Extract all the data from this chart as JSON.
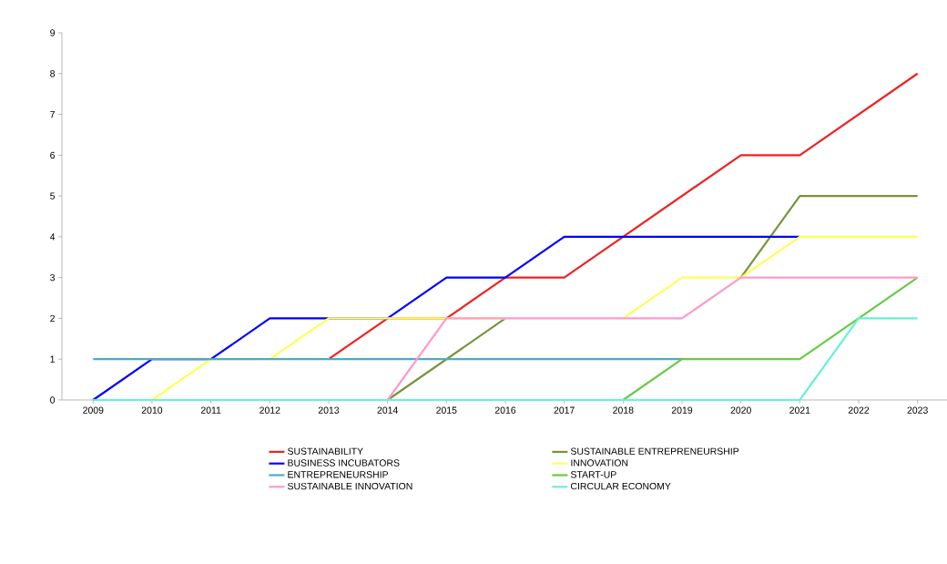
{
  "chart_data": {
    "type": "line",
    "categories": [
      "2009",
      "2010",
      "2011",
      "2012",
      "2013",
      "2014",
      "2015",
      "2016",
      "2017",
      "2018",
      "2019",
      "2020",
      "2021",
      "2022",
      "2023"
    ],
    "ylim": [
      0,
      9
    ],
    "yticks": [
      0,
      1,
      2,
      3,
      4,
      5,
      6,
      7,
      8,
      9
    ],
    "legend": "bottom",
    "grid": false,
    "marker": "none",
    "line_style": "solid",
    "series": [
      {
        "name": "SUSTAINABILITY",
        "color": "#ee2222",
        "values": [
          null,
          null,
          null,
          null,
          1,
          2,
          2,
          3,
          3,
          4,
          5,
          6,
          6,
          7,
          8
        ]
      },
      {
        "name": "SUSTAINABLE ENTREPRENEURSHIP",
        "color": "#77933c",
        "values": [
          null,
          null,
          null,
          null,
          null,
          0,
          1,
          2,
          null,
          null,
          null,
          3,
          5,
          5,
          5
        ]
      },
      {
        "name": "BUSINESS INCUBATORS",
        "color": "#0000ff",
        "values": [
          0,
          1,
          1,
          2,
          2,
          2,
          3,
          3,
          4,
          4,
          4,
          4,
          4,
          null,
          null
        ]
      },
      {
        "name": "INNOVATION",
        "color": "#ffff55",
        "values": [
          null,
          0,
          1,
          1,
          2,
          2,
          2,
          2,
          null,
          2,
          3,
          3,
          4,
          4,
          4
        ]
      },
      {
        "name": "ENTREPRENEURSHIP",
        "color": "#4bacc6",
        "values": [
          1,
          1,
          1,
          1,
          1,
          1,
          1,
          1,
          1,
          1,
          1,
          null,
          null,
          null,
          null
        ]
      },
      {
        "name": "START-UP",
        "color": "#66cc44",
        "values": [
          null,
          null,
          null,
          null,
          null,
          null,
          null,
          null,
          null,
          0,
          1,
          1,
          1,
          2,
          3
        ]
      },
      {
        "name": "SUSTAINABLE INNOVATION",
        "color": "#ff99cc",
        "values": [
          null,
          null,
          null,
          null,
          null,
          0,
          2,
          2,
          2,
          2,
          2,
          3,
          3,
          3,
          3
        ]
      },
      {
        "name": "CIRCULAR ECONOMY",
        "color": "#66f2d8",
        "values": [
          0,
          0,
          0,
          0,
          0,
          0,
          0,
          0,
          0,
          0,
          0,
          0,
          0,
          2,
          2
        ]
      }
    ]
  }
}
